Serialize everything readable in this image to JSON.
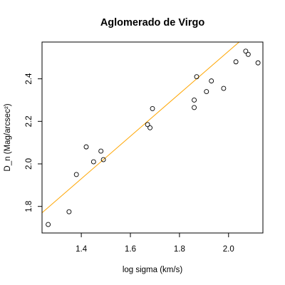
{
  "chart_data": {
    "type": "scatter",
    "title": "Aglomerado de Virgo",
    "xlabel": "log sigma (km/s)",
    "ylabel": "D_n (Mag/arcsec²)",
    "xlim": [
      1.24,
      2.14
    ],
    "ylim": [
      1.675,
      2.573
    ],
    "x_ticks": [
      1.4,
      1.6,
      1.8,
      2.0
    ],
    "y_ticks": [
      1.8,
      2.0,
      2.2,
      2.4
    ],
    "x_tick_labels": [
      "1.4",
      "1.6",
      "1.8",
      "2.0"
    ],
    "y_tick_labels": [
      "1.8",
      "2.0",
      "2.2",
      "2.4"
    ],
    "grid": false,
    "marker": "open-circle",
    "fit_line_color": "#ffa500",
    "fit_line": {
      "intercept": 0.53,
      "slope": 1.0
    },
    "points": [
      {
        "x": 1.265,
        "y": 1.715
      },
      {
        "x": 1.35,
        "y": 1.775
      },
      {
        "x": 1.38,
        "y": 1.95
      },
      {
        "x": 1.42,
        "y": 2.08
      },
      {
        "x": 1.45,
        "y": 2.01
      },
      {
        "x": 1.48,
        "y": 2.06
      },
      {
        "x": 1.49,
        "y": 2.02
      },
      {
        "x": 1.67,
        "y": 2.185
      },
      {
        "x": 1.68,
        "y": 2.17
      },
      {
        "x": 1.69,
        "y": 2.26
      },
      {
        "x": 1.86,
        "y": 2.3
      },
      {
        "x": 1.86,
        "y": 2.265
      },
      {
        "x": 1.87,
        "y": 2.41
      },
      {
        "x": 1.91,
        "y": 2.34
      },
      {
        "x": 1.93,
        "y": 2.39
      },
      {
        "x": 1.98,
        "y": 2.355
      },
      {
        "x": 2.03,
        "y": 2.48
      },
      {
        "x": 2.07,
        "y": 2.53
      },
      {
        "x": 2.08,
        "y": 2.515
      },
      {
        "x": 2.12,
        "y": 2.475
      }
    ]
  }
}
